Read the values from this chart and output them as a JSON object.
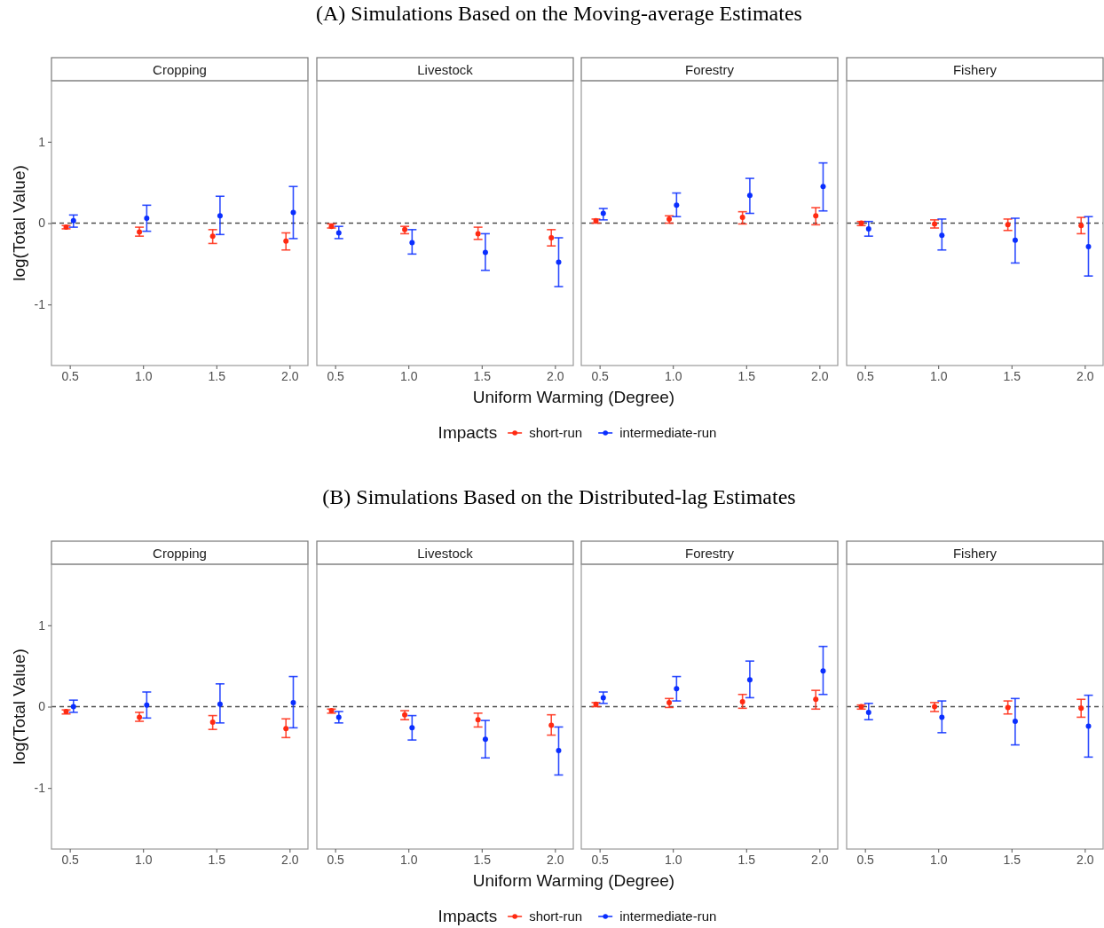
{
  "chart_data": [
    {
      "type": "scatter",
      "title": "Cropping",
      "annotations": [
        "(A) Simulations Based on the Moving-average Estimates"
      ],
      "ylabel": "log(Total Value)",
      "legend_title": "Impacts",
      "legend": "bottom",
      "marker": "circle",
      "grid": false,
      "xlim": [
        0.375,
        2.125
      ],
      "xticks": [
        {
          "value": 0.5,
          "label": "0.5"
        },
        {
          "value": 1,
          "label": "1.0"
        },
        {
          "value": 1.5,
          "label": "1.5"
        },
        {
          "value": 2,
          "label": "2.0"
        }
      ],
      "ylim": [
        -1.75,
        1.75
      ],
      "yticks": [
        -1,
        0,
        1
      ],
      "ref_lines": [
        {
          "axis": "y",
          "value": 0,
          "line_style": "dashed",
          "color": "#4d4d4d"
        }
      ],
      "series": [
        {
          "name": "short-run",
          "color": "#ff2a12",
          "x": [
            0.475,
            0.975,
            1.475,
            1.975
          ],
          "values": [
            -0.05,
            -0.11,
            -0.16,
            -0.22
          ],
          "errors": [
            [
              -0.07,
              -0.03
            ],
            [
              -0.16,
              -0.05
            ],
            [
              -0.25,
              -0.08
            ],
            [
              -0.33,
              -0.12
            ]
          ]
        },
        {
          "name": "intermediate-run",
          "color": "#0a2eff",
          "x": [
            0.525,
            1.025,
            1.525,
            2.025
          ],
          "values": [
            0.03,
            0.06,
            0.09,
            0.13
          ],
          "errors": [
            [
              -0.05,
              0.1
            ],
            [
              -0.1,
              0.22
            ],
            [
              -0.14,
              0.33
            ],
            [
              -0.19,
              0.45
            ]
          ]
        }
      ]
    },
    {
      "type": "scatter",
      "title": "Livestock",
      "xlabel": "Uniform Warming (Degree)",
      "tick_labels": "x",
      "marker": "circle",
      "grid": false,
      "xlim": [
        0.375,
        2.125
      ],
      "xticks": [
        {
          "value": 0.5,
          "label": "0.5"
        },
        {
          "value": 1,
          "label": "1.0"
        },
        {
          "value": 1.5,
          "label": "1.5"
        },
        {
          "value": 2,
          "label": "2.0"
        }
      ],
      "ylim": [
        -1.75,
        1.75
      ],
      "yticks": [
        -1,
        0,
        1
      ],
      "ref_lines": [
        {
          "axis": "y",
          "value": 0,
          "line_style": "dashed",
          "color": "#4d4d4d"
        }
      ],
      "series": [
        {
          "color": "#ff2a12",
          "x": [
            0.475,
            0.975,
            1.475,
            1.975
          ],
          "values": [
            -0.04,
            -0.08,
            -0.13,
            -0.18
          ],
          "errors": [
            [
              -0.06,
              -0.01
            ],
            [
              -0.13,
              -0.04
            ],
            [
              -0.2,
              -0.05
            ],
            [
              -0.28,
              -0.08
            ]
          ]
        },
        {
          "color": "#0a2eff",
          "x": [
            0.525,
            1.025,
            1.525,
            2.025
          ],
          "values": [
            -0.12,
            -0.24,
            -0.36,
            -0.48
          ],
          "errors": [
            [
              -0.19,
              -0.04
            ],
            [
              -0.38,
              -0.08
            ],
            [
              -0.58,
              -0.13
            ],
            [
              -0.78,
              -0.18
            ]
          ]
        }
      ]
    },
    {
      "type": "scatter",
      "title": "Forestry",
      "tick_labels": "x",
      "marker": "circle",
      "grid": false,
      "xlim": [
        0.375,
        2.125
      ],
      "xticks": [
        {
          "value": 0.5,
          "label": "0.5"
        },
        {
          "value": 1,
          "label": "1.0"
        },
        {
          "value": 1.5,
          "label": "1.5"
        },
        {
          "value": 2,
          "label": "2.0"
        }
      ],
      "ylim": [
        -1.75,
        1.75
      ],
      "yticks": [
        -1,
        0,
        1
      ],
      "ref_lines": [
        {
          "axis": "y",
          "value": 0,
          "line_style": "dashed",
          "color": "#4d4d4d"
        }
      ],
      "series": [
        {
          "color": "#ff2a12",
          "x": [
            0.475,
            0.975,
            1.475,
            1.975
          ],
          "values": [
            0.03,
            0.05,
            0.07,
            0.09
          ],
          "errors": [
            [
              0,
              0.05
            ],
            [
              0,
              0.09
            ],
            [
              -0.01,
              0.14
            ],
            [
              -0.02,
              0.19
            ]
          ]
        },
        {
          "color": "#0a2eff",
          "x": [
            0.525,
            1.025,
            1.525,
            2.025
          ],
          "values": [
            0.12,
            0.22,
            0.34,
            0.45
          ],
          "errors": [
            [
              0.04,
              0.18
            ],
            [
              0.08,
              0.37
            ],
            [
              0.12,
              0.55
            ],
            [
              0.15,
              0.74
            ]
          ]
        }
      ]
    },
    {
      "type": "scatter",
      "title": "Fishery",
      "tick_labels": "x",
      "marker": "circle",
      "grid": false,
      "xlim": [
        0.375,
        2.125
      ],
      "xticks": [
        {
          "value": 0.5,
          "label": "0.5"
        },
        {
          "value": 1,
          "label": "1.0"
        },
        {
          "value": 1.5,
          "label": "1.5"
        },
        {
          "value": 2,
          "label": "2.0"
        }
      ],
      "ylim": [
        -1.75,
        1.75
      ],
      "yticks": [
        -1,
        0,
        1
      ],
      "ref_lines": [
        {
          "axis": "y",
          "value": 0,
          "line_style": "dashed",
          "color": "#4d4d4d"
        }
      ],
      "series": [
        {
          "color": "#ff2a12",
          "x": [
            0.475,
            0.975,
            1.475,
            1.975
          ],
          "values": [
            0,
            -0.01,
            -0.02,
            -0.03
          ],
          "errors": [
            [
              -0.03,
              0.02
            ],
            [
              -0.06,
              0.04
            ],
            [
              -0.09,
              0.05
            ],
            [
              -0.13,
              0.07
            ]
          ]
        },
        {
          "color": "#0a2eff",
          "x": [
            0.525,
            1.025,
            1.525,
            2.025
          ],
          "values": [
            -0.07,
            -0.15,
            -0.21,
            -0.29
          ],
          "errors": [
            [
              -0.16,
              0.02
            ],
            [
              -0.33,
              0.05
            ],
            [
              -0.49,
              0.06
            ],
            [
              -0.65,
              0.08
            ]
          ]
        }
      ]
    },
    {
      "type": "scatter",
      "title": "Cropping",
      "annotations": [
        "(B) Simulations Based on the Distributed-lag Estimates"
      ],
      "ylabel": "log(Total Value)",
      "legend_title": "Impacts",
      "legend": "bottom",
      "marker": "circle",
      "grid": false,
      "xlim": [
        0.375,
        2.125
      ],
      "xticks": [
        {
          "value": 0.5,
          "label": "0.5"
        },
        {
          "value": 1,
          "label": "1.0"
        },
        {
          "value": 1.5,
          "label": "1.5"
        },
        {
          "value": 2,
          "label": "2.0"
        }
      ],
      "ylim": [
        -1.75,
        1.75
      ],
      "yticks": [
        -1,
        0,
        1
      ],
      "ref_lines": [
        {
          "axis": "y",
          "value": 0,
          "line_style": "dashed",
          "color": "#4d4d4d"
        }
      ],
      "series": [
        {
          "name": "short-run",
          "color": "#ff2a12",
          "x": [
            0.475,
            0.975,
            1.475,
            1.975
          ],
          "values": [
            -0.06,
            -0.13,
            -0.19,
            -0.27
          ],
          "errors": [
            [
              -0.09,
              -0.04
            ],
            [
              -0.18,
              -0.07
            ],
            [
              -0.28,
              -0.11
            ],
            [
              -0.38,
              -0.15
            ]
          ]
        },
        {
          "name": "intermediate-run",
          "color": "#0a2eff",
          "x": [
            0.525,
            1.025,
            1.525,
            2.025
          ],
          "values": [
            0,
            0.02,
            0.03,
            0.05
          ],
          "errors": [
            [
              -0.07,
              0.08
            ],
            [
              -0.14,
              0.18
            ],
            [
              -0.2,
              0.28
            ],
            [
              -0.26,
              0.37
            ]
          ]
        }
      ]
    },
    {
      "type": "scatter",
      "title": "Livestock",
      "xlabel": "Uniform Warming (Degree)",
      "tick_labels": "x",
      "marker": "circle",
      "grid": false,
      "xlim": [
        0.375,
        2.125
      ],
      "xticks": [
        {
          "value": 0.5,
          "label": "0.5"
        },
        {
          "value": 1,
          "label": "1.0"
        },
        {
          "value": 1.5,
          "label": "1.5"
        },
        {
          "value": 2,
          "label": "2.0"
        }
      ],
      "ylim": [
        -1.75,
        1.75
      ],
      "yticks": [
        -1,
        0,
        1
      ],
      "ref_lines": [
        {
          "axis": "y",
          "value": 0,
          "line_style": "dashed",
          "color": "#4d4d4d"
        }
      ],
      "series": [
        {
          "color": "#ff2a12",
          "x": [
            0.475,
            0.975,
            1.475,
            1.975
          ],
          "values": [
            -0.05,
            -0.1,
            -0.16,
            -0.23
          ],
          "errors": [
            [
              -0.08,
              -0.03
            ],
            [
              -0.16,
              -0.05
            ],
            [
              -0.25,
              -0.08
            ],
            [
              -0.35,
              -0.1
            ]
          ]
        },
        {
          "color": "#0a2eff",
          "x": [
            0.525,
            1.025,
            1.525,
            2.025
          ],
          "values": [
            -0.13,
            -0.26,
            -0.4,
            -0.54
          ],
          "errors": [
            [
              -0.2,
              -0.06
            ],
            [
              -0.41,
              -0.11
            ],
            [
              -0.63,
              -0.17
            ],
            [
              -0.84,
              -0.25
            ]
          ]
        }
      ]
    },
    {
      "type": "scatter",
      "title": "Forestry",
      "tick_labels": "x",
      "marker": "circle",
      "grid": false,
      "xlim": [
        0.375,
        2.125
      ],
      "xticks": [
        {
          "value": 0.5,
          "label": "0.5"
        },
        {
          "value": 1,
          "label": "1.0"
        },
        {
          "value": 1.5,
          "label": "1.5"
        },
        {
          "value": 2,
          "label": "2.0"
        }
      ],
      "ylim": [
        -1.75,
        1.75
      ],
      "yticks": [
        -1,
        0,
        1
      ],
      "ref_lines": [
        {
          "axis": "y",
          "value": 0,
          "line_style": "dashed",
          "color": "#4d4d4d"
        }
      ],
      "series": [
        {
          "color": "#ff2a12",
          "x": [
            0.475,
            0.975,
            1.475,
            1.975
          ],
          "values": [
            0.03,
            0.05,
            0.06,
            0.09
          ],
          "errors": [
            [
              0,
              0.05
            ],
            [
              -0.01,
              0.1
            ],
            [
              -0.02,
              0.15
            ],
            [
              -0.03,
              0.2
            ]
          ]
        },
        {
          "color": "#0a2eff",
          "x": [
            0.525,
            1.025,
            1.525,
            2.025
          ],
          "values": [
            0.11,
            0.22,
            0.33,
            0.44
          ],
          "errors": [
            [
              0.04,
              0.18
            ],
            [
              0.07,
              0.37
            ],
            [
              0.11,
              0.56
            ],
            [
              0.15,
              0.74
            ]
          ]
        }
      ]
    },
    {
      "type": "scatter",
      "title": "Fishery",
      "tick_labels": "x",
      "marker": "circle",
      "grid": false,
      "xlim": [
        0.375,
        2.125
      ],
      "xticks": [
        {
          "value": 0.5,
          "label": "0.5"
        },
        {
          "value": 1,
          "label": "1.0"
        },
        {
          "value": 1.5,
          "label": "1.5"
        },
        {
          "value": 2,
          "label": "2.0"
        }
      ],
      "ylim": [
        -1.75,
        1.75
      ],
      "yticks": [
        -1,
        0,
        1
      ],
      "ref_lines": [
        {
          "axis": "y",
          "value": 0,
          "line_style": "dashed",
          "color": "#4d4d4d"
        }
      ],
      "series": [
        {
          "color": "#ff2a12",
          "x": [
            0.475,
            0.975,
            1.475,
            1.975
          ],
          "values": [
            0,
            0,
            -0.01,
            -0.02
          ],
          "errors": [
            [
              -0.03,
              0.02
            ],
            [
              -0.06,
              0.05
            ],
            [
              -0.09,
              0.07
            ],
            [
              -0.13,
              0.09
            ]
          ]
        },
        {
          "color": "#0a2eff",
          "x": [
            0.525,
            1.025,
            1.525,
            2.025
          ],
          "values": [
            -0.07,
            -0.13,
            -0.18,
            -0.24
          ],
          "errors": [
            [
              -0.16,
              0.04
            ],
            [
              -0.32,
              0.07
            ],
            [
              -0.47,
              0.1
            ],
            [
              -0.62,
              0.14
            ]
          ]
        }
      ]
    }
  ]
}
